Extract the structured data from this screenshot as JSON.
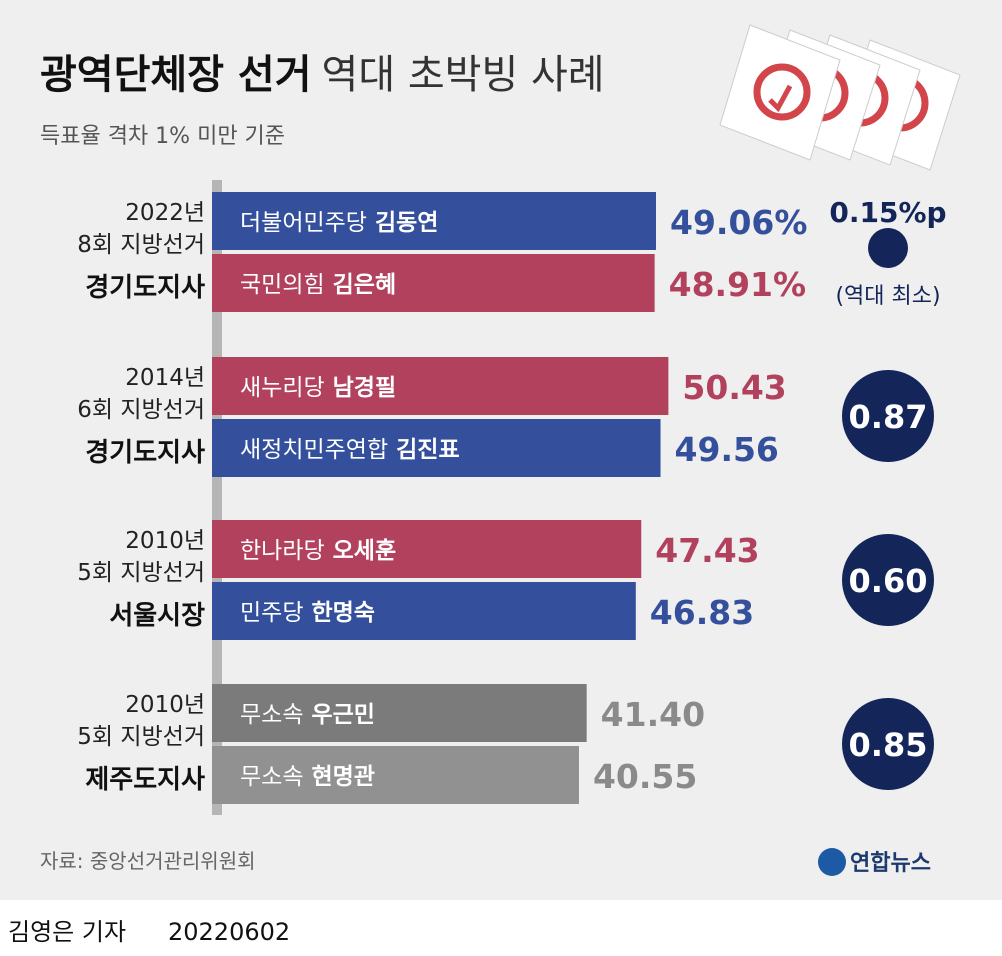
{
  "chart_data": {
    "type": "bar",
    "title": "광역단체장 선거",
    "title_rest": "역대 초박빙 사례",
    "subtitle": "득표율 격차 1% 미만 기준",
    "xlim": [
      0,
      60
    ],
    "groups": [
      {
        "year": "2022년",
        "election": "8회 지방선거",
        "office": "경기도지사",
        "bars": [
          {
            "party": "더불어민주당",
            "name": "김동연",
            "value": 49.06,
            "value_label": "49.06%",
            "color": "#34509c"
          },
          {
            "party": "국민의힘",
            "name": "김은혜",
            "value": 48.91,
            "value_label": "48.91%",
            "color": "#b1415d"
          }
        ],
        "margin": 0.15,
        "margin_label": "0.15%p",
        "margin_note": "(역대 최소)"
      },
      {
        "year": "2014년",
        "election": "6회 지방선거",
        "office": "경기도지사",
        "bars": [
          {
            "party": "새누리당",
            "name": "남경필",
            "value": 50.43,
            "color": "#b1415d"
          },
          {
            "party": "새정치민주연합",
            "name": "김진표",
            "value": 49.56,
            "color": "#34509c"
          }
        ],
        "margin": 0.87
      },
      {
        "year": "2010년",
        "election": "5회 지방선거",
        "office": "서울시장",
        "bars": [
          {
            "party": "한나라당",
            "name": "오세훈",
            "value": 47.43,
            "color": "#b1415d"
          },
          {
            "party": "민주당",
            "name": "한명숙",
            "value": 46.83,
            "color": "#34509c"
          }
        ],
        "margin": 0.6,
        "margin_label": "0.60"
      },
      {
        "year": "2010년",
        "election": "5회 지방선거",
        "office": "제주도지사",
        "bars": [
          {
            "party": "무소속",
            "name": "우근민",
            "value": 41.4,
            "value_label": "41.40",
            "color": "#7b7b7b"
          },
          {
            "party": "무소속",
            "name": "현명관",
            "value": 40.55,
            "color": "#919191"
          }
        ],
        "margin": 0.85
      }
    ],
    "source": "자료: 중앙선거관리위원회",
    "logo": "연합뉴스",
    "reporter": "김영은 기자",
    "date": "20220602"
  }
}
